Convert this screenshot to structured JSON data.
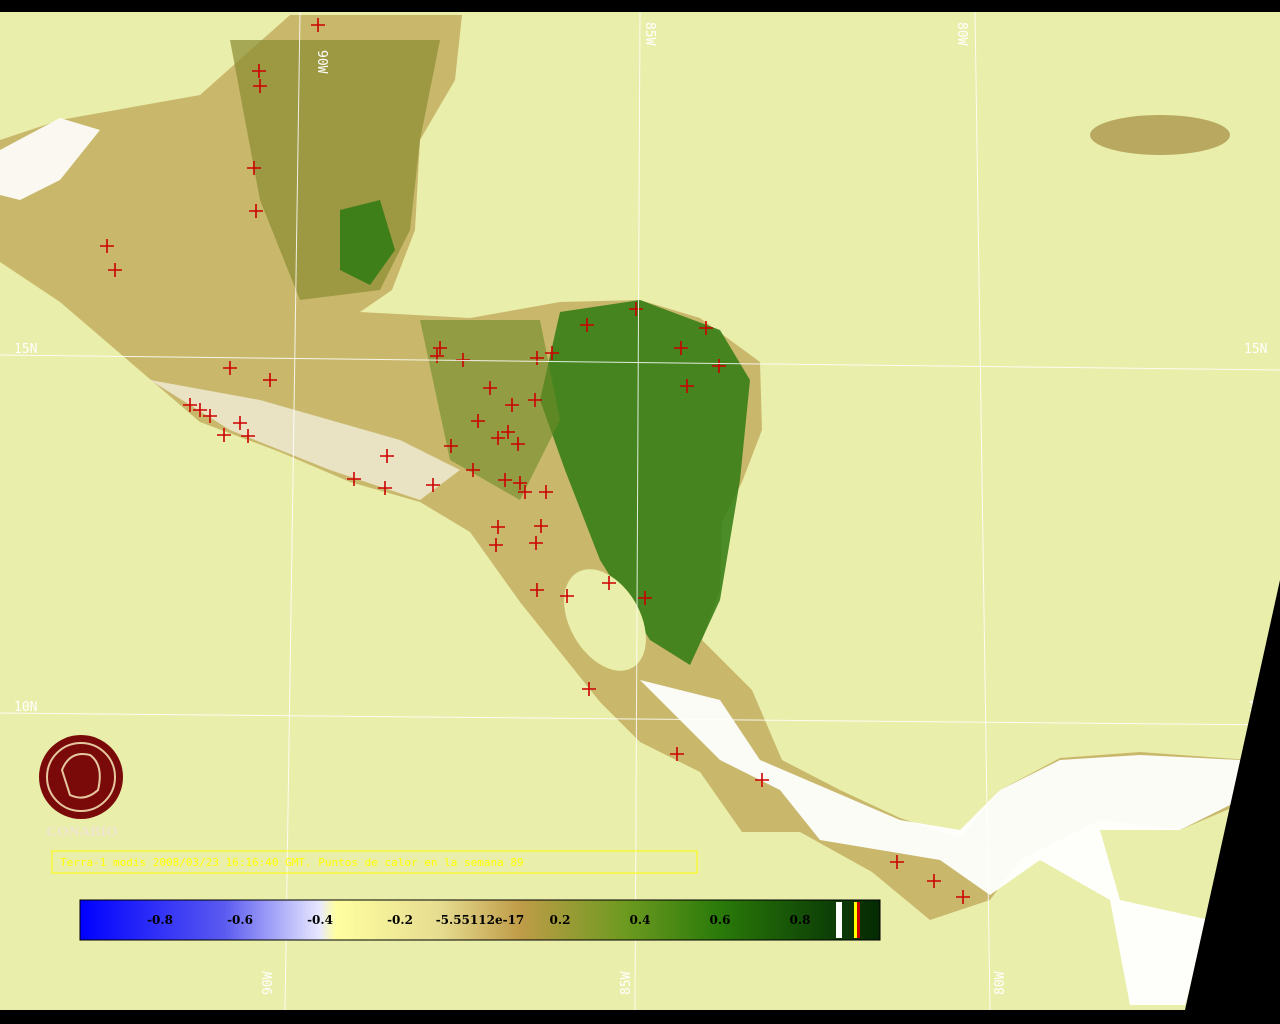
{
  "map": {
    "grid_labels": {
      "lon": [
        "90W",
        "85W",
        "80W"
      ],
      "lat": [
        "15N",
        "10N"
      ]
    },
    "logo": {
      "label": "CONABIO"
    },
    "caption": "Terra-1 modis 2008/03/23 16:16:40 GMT. Puntos de calor en la semana 89",
    "colorbar": {
      "ticks": [
        "-0.8",
        "-0.6",
        "-0.4",
        "-0.2",
        "-5.55112e-17",
        "0.2",
        "0.4",
        "0.6",
        "0.8"
      ]
    }
  }
}
